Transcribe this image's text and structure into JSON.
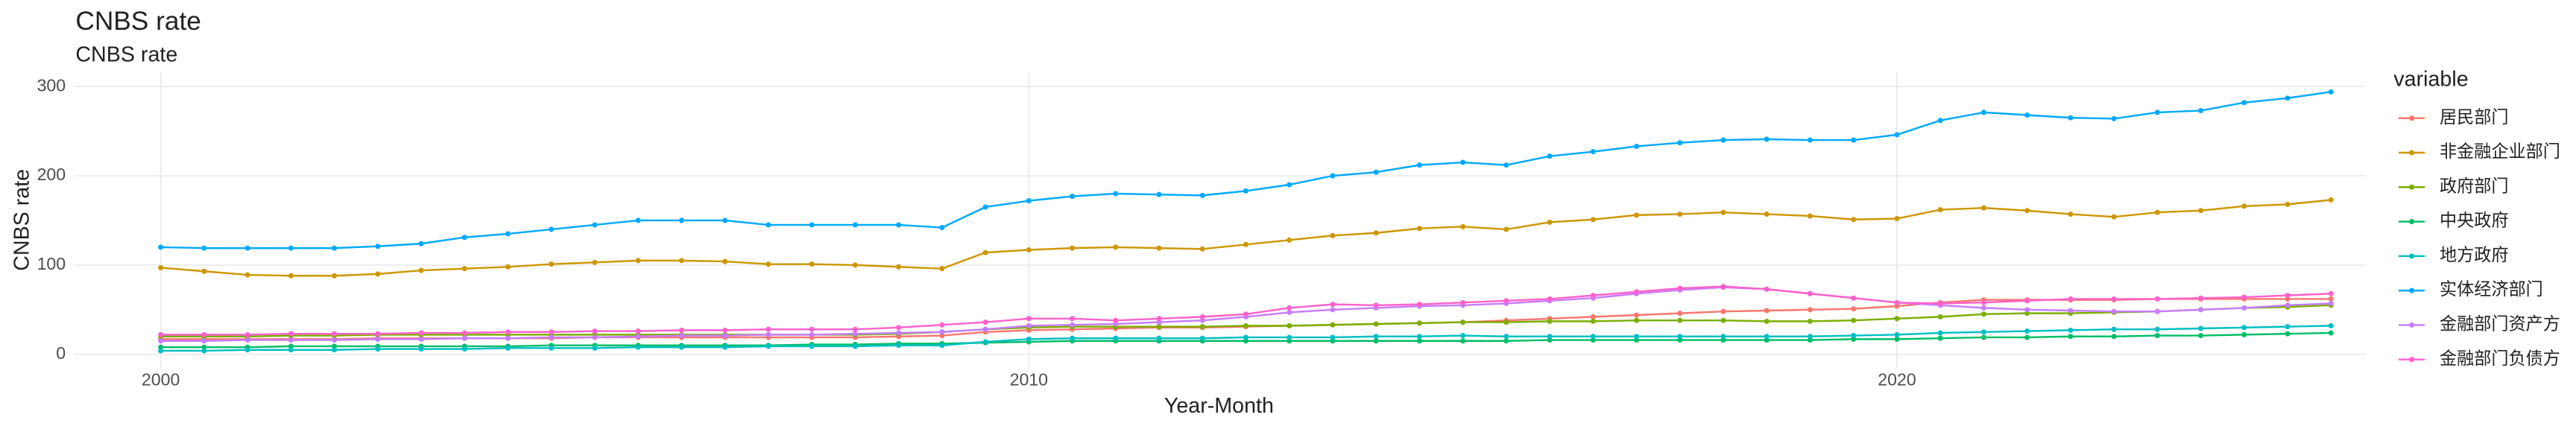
{
  "chart_data": {
    "type": "line",
    "title": "CNBS rate",
    "subtitle": "CNBS rate",
    "x_label": "Year-Month",
    "y_label": "CNBS rate",
    "legend_title": "variable",
    "legend_position": "right",
    "grid": true,
    "xlim": [
      1999,
      2025.4
    ],
    "xticks": [
      2000,
      2010,
      2020
    ],
    "ylim": [
      -15,
      316
    ],
    "yticks": [
      0,
      100,
      200,
      300
    ],
    "x": [
      2000,
      2000.5,
      2001,
      2001.5,
      2002,
      2002.5,
      2003,
      2003.5,
      2004,
      2004.5,
      2005,
      2005.5,
      2006,
      2006.5,
      2007,
      2007.5,
      2008,
      2008.5,
      2009,
      2009.5,
      2010,
      2010.5,
      2011,
      2011.5,
      2012,
      2012.5,
      2013,
      2013.5,
      2014,
      2014.5,
      2015,
      2015.5,
      2016,
      2016.5,
      2017,
      2017.5,
      2018,
      2018.5,
      2019,
      2019.5,
      2020,
      2020.5,
      2021,
      2021.5,
      2022,
      2022.5,
      2023,
      2023.5,
      2024,
      2024.5,
      2025
    ],
    "series": [
      {
        "name": "居民部门",
        "color": "#F8766D",
        "values": [
          17,
          17,
          17,
          17,
          17,
          18,
          18,
          18,
          18,
          18,
          19,
          19,
          19,
          19,
          19,
          19,
          19,
          20,
          21,
          25,
          27,
          28,
          29,
          30,
          30,
          31,
          32,
          33,
          34,
          35,
          36,
          38,
          40,
          42,
          44,
          46,
          48,
          49,
          50,
          51,
          54,
          58,
          61,
          61,
          61,
          61,
          62,
          62,
          62,
          62,
          62
        ]
      },
      {
        "name": "非金融企业部门",
        "color": "#CD9600",
        "values": [
          97,
          93,
          89,
          88,
          88,
          90,
          94,
          96,
          98,
          101,
          103,
          105,
          105,
          104,
          101,
          101,
          100,
          98,
          96,
          114,
          117,
          119,
          120,
          119,
          118,
          123,
          128,
          133,
          136,
          141,
          143,
          140,
          148,
          151,
          156,
          157,
          159,
          157,
          155,
          151,
          152,
          162,
          164,
          161,
          157,
          154,
          159,
          161,
          166,
          168,
          173
        ]
      },
      {
        "name": "政府部门",
        "color": "#7CAE00",
        "values": [
          20,
          20,
          20,
          21,
          21,
          22,
          22,
          22,
          22,
          22,
          22,
          22,
          22,
          22,
          22,
          22,
          22,
          23,
          25,
          28,
          30,
          31,
          31,
          31,
          31,
          32,
          32,
          33,
          34,
          35,
          36,
          36,
          37,
          37,
          38,
          38,
          38,
          37,
          37,
          38,
          40,
          42,
          45,
          46,
          46,
          47,
          48,
          50,
          52,
          53,
          55
        ]
      },
      {
        "name": "中央政府",
        "color": "#00BE67",
        "values": [
          8,
          8,
          8,
          9,
          9,
          9,
          9,
          9,
          9,
          10,
          10,
          10,
          10,
          10,
          10,
          11,
          11,
          12,
          12,
          13,
          14,
          15,
          15,
          15,
          15,
          15,
          15,
          15,
          15,
          15,
          15,
          15,
          16,
          16,
          16,
          16,
          16,
          16,
          16,
          17,
          17,
          18,
          19,
          19,
          20,
          20,
          21,
          21,
          22,
          23,
          24
        ]
      },
      {
        "name": "地方政府",
        "color": "#00BFC4",
        "values": [
          4,
          4,
          5,
          5,
          5,
          6,
          6,
          6,
          7,
          7,
          7,
          8,
          8,
          8,
          9,
          9,
          9,
          10,
          10,
          14,
          17,
          18,
          18,
          18,
          18,
          19,
          19,
          19,
          20,
          20,
          21,
          20,
          20,
          20,
          20,
          20,
          20,
          20,
          20,
          21,
          22,
          24,
          25,
          26,
          27,
          28,
          28,
          29,
          30,
          31,
          32
        ]
      },
      {
        "name": "实体经济部门",
        "color": "#00A9FF",
        "values": [
          120,
          119,
          119,
          119,
          119,
          121,
          124,
          131,
          135,
          140,
          145,
          150,
          150,
          150,
          145,
          145,
          145,
          145,
          142,
          165,
          172,
          177,
          180,
          179,
          178,
          183,
          190,
          200,
          204,
          212,
          215,
          212,
          222,
          227,
          233,
          237,
          240,
          241,
          240,
          240,
          246,
          262,
          271,
          268,
          265,
          264,
          271,
          273,
          282,
          287,
          294
        ]
      },
      {
        "name": "金融部门资产方",
        "color": "#C77CFF",
        "values": [
          15,
          15,
          16,
          16,
          16,
          17,
          17,
          18,
          18,
          19,
          19,
          20,
          21,
          21,
          22,
          22,
          23,
          24,
          25,
          28,
          32,
          33,
          34,
          36,
          38,
          42,
          47,
          50,
          52,
          54,
          55,
          57,
          60,
          63,
          68,
          72,
          75,
          73,
          68,
          63,
          58,
          55,
          52,
          50,
          49,
          48,
          48,
          50,
          52,
          55,
          57
        ]
      },
      {
        "name": "金融部门负债方",
        "color": "#FF61CC",
        "values": [
          22,
          22,
          22,
          23,
          23,
          23,
          24,
          24,
          25,
          25,
          26,
          26,
          27,
          27,
          28,
          28,
          28,
          30,
          33,
          36,
          40,
          40,
          38,
          40,
          42,
          45,
          52,
          56,
          55,
          56,
          58,
          60,
          62,
          66,
          70,
          74,
          76,
          73,
          68,
          63,
          58,
          57,
          58,
          60,
          62,
          62,
          62,
          63,
          64,
          66,
          68
        ]
      }
    ]
  }
}
